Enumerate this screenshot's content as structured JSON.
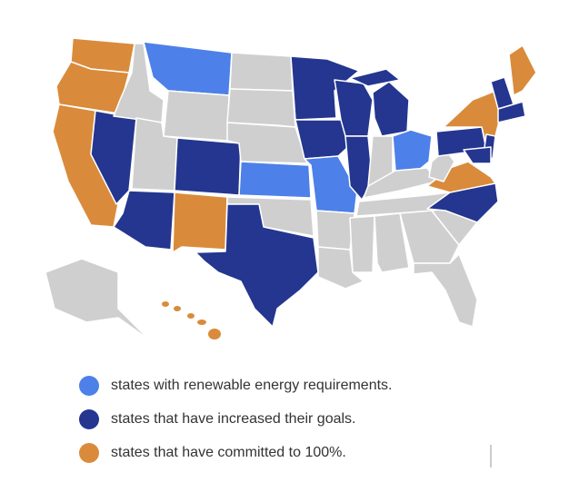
{
  "legend": {
    "items": [
      {
        "label": "states with renewable energy requirements.",
        "color": "#4d80e8"
      },
      {
        "label": "states that have increased their goals.",
        "color": "#24368f"
      },
      {
        "label": "states that have committed to 100%.",
        "color": "#d98b3b"
      }
    ]
  }
}
